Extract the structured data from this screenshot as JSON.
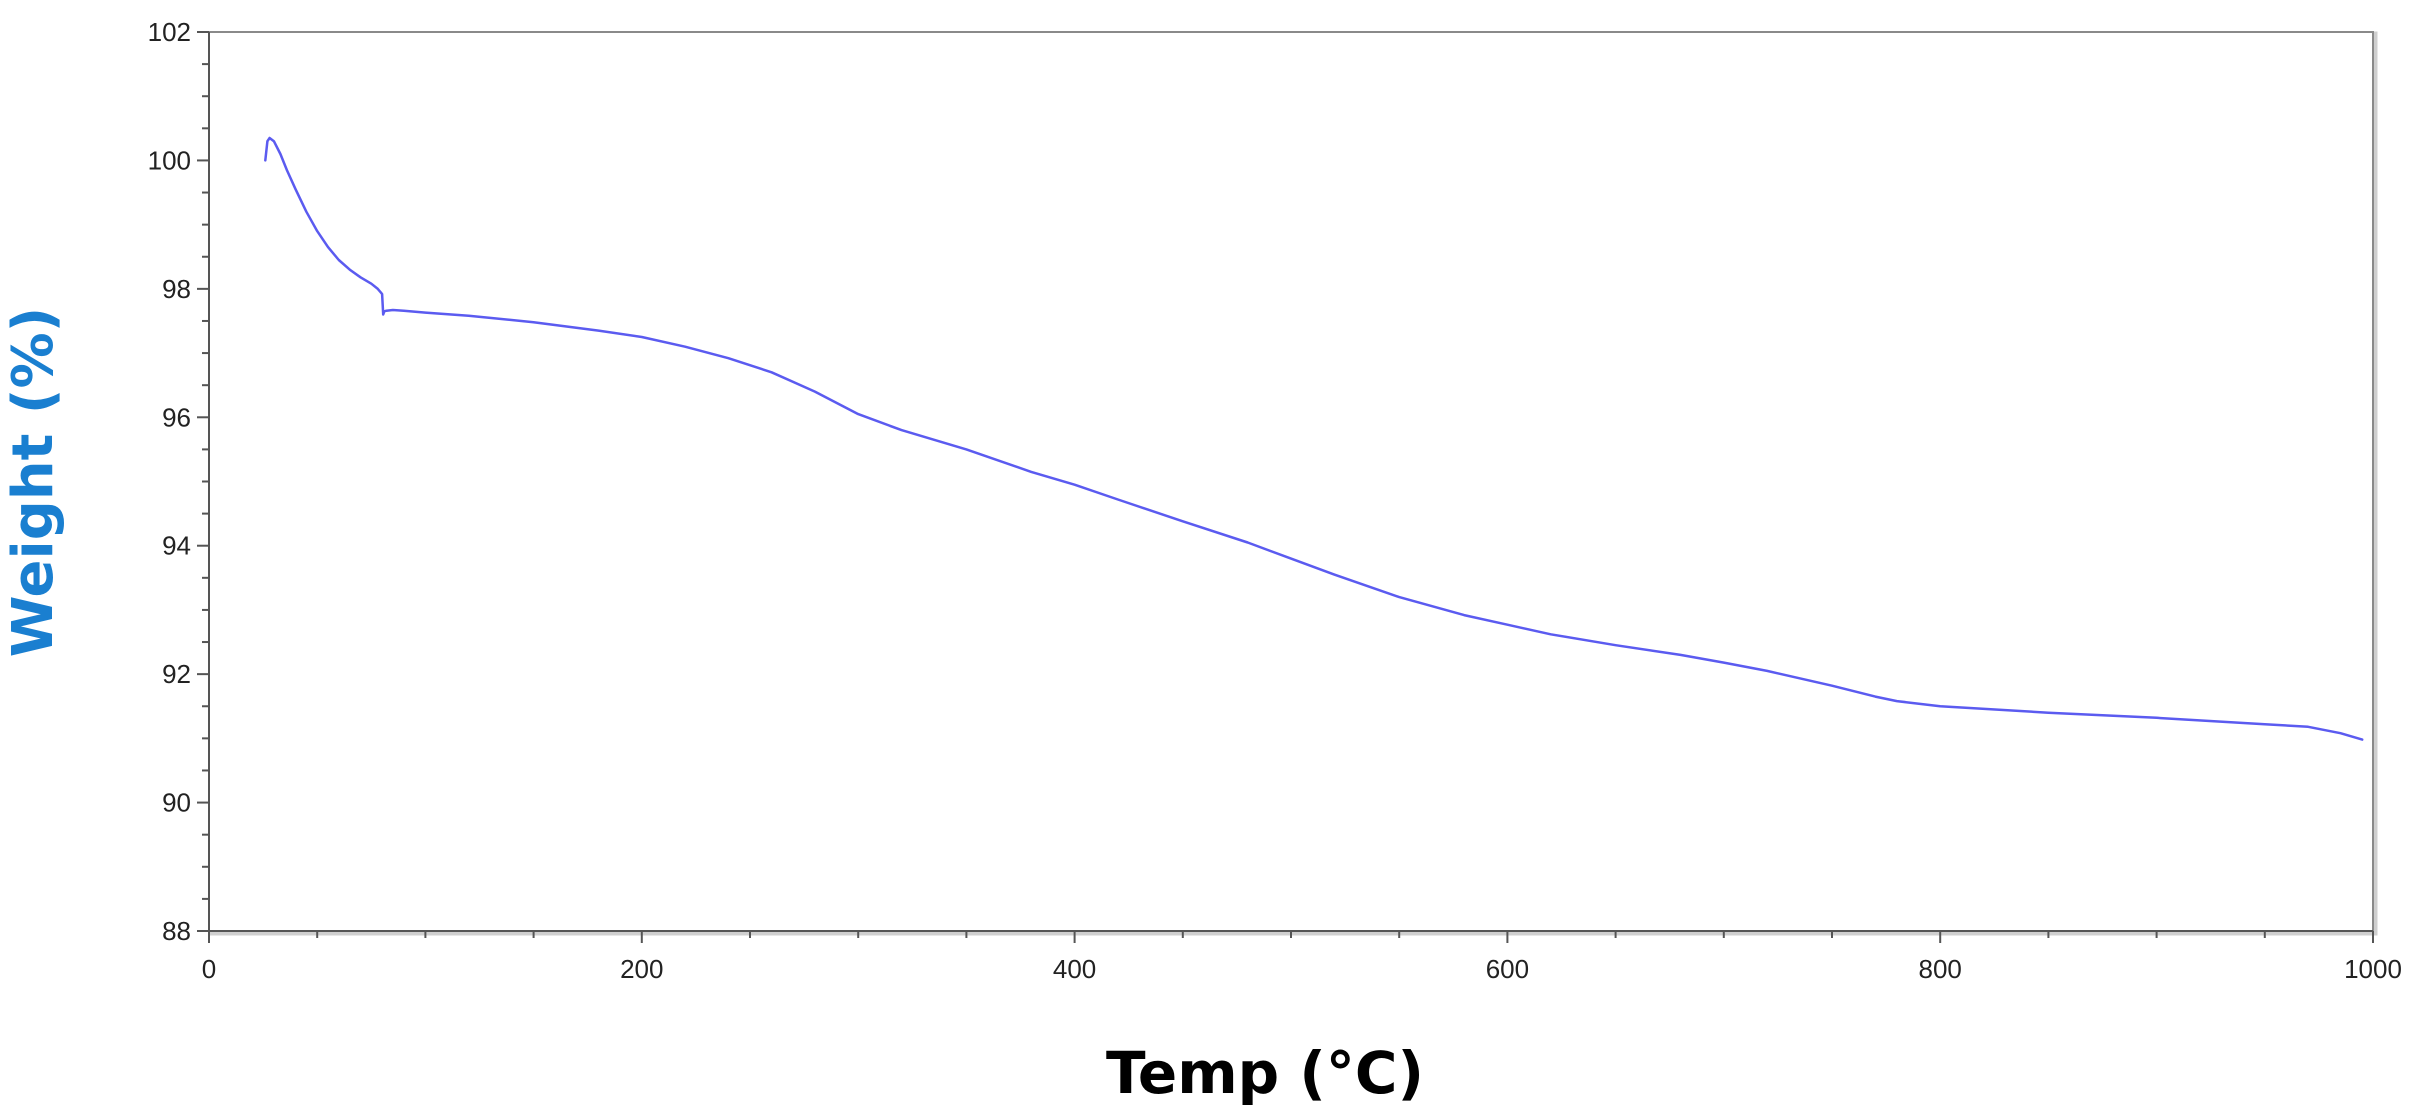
{
  "chart_data": {
    "type": "line",
    "title": "",
    "xlabel": "Temp (°C)",
    "ylabel": "Weight (%)",
    "xlim": [
      0,
      1000
    ],
    "ylim": [
      88,
      102
    ],
    "x_ticks": [
      0,
      200,
      400,
      600,
      800,
      1000
    ],
    "y_ticks": [
      88,
      90,
      92,
      94,
      96,
      98,
      100,
      102
    ],
    "x_minor_step": 50,
    "y_minor_step": 0.5,
    "grid": false,
    "legend": "none",
    "colors": {
      "line": "#5b5bf0",
      "ylabel": "#1a7fd0",
      "xlabel": "#000000",
      "axes": "#555555",
      "frame_shadow": "#cfcfcf"
    },
    "series": [
      {
        "x": [
          26,
          27,
          28,
          30,
          33,
          36,
          40,
          45,
          50,
          55,
          60,
          65,
          70,
          75,
          78,
          80,
          80.5,
          81,
          82,
          85,
          90,
          100,
          120,
          150,
          180,
          200,
          220,
          240,
          260,
          280,
          300,
          320,
          350,
          380,
          400,
          420,
          450,
          480,
          500,
          520,
          550,
          580,
          600,
          620,
          650,
          680,
          700,
          720,
          750,
          770,
          780,
          800,
          850,
          900,
          950,
          970,
          985,
          995
        ],
        "y": [
          100.0,
          100.3,
          100.35,
          100.3,
          100.1,
          99.85,
          99.55,
          99.2,
          98.9,
          98.65,
          98.45,
          98.3,
          98.18,
          98.08,
          98.0,
          97.92,
          97.6,
          97.65,
          97.66,
          97.67,
          97.66,
          97.63,
          97.58,
          97.48,
          97.35,
          97.25,
          97.1,
          96.92,
          96.7,
          96.4,
          96.05,
          95.8,
          95.5,
          95.15,
          94.95,
          94.72,
          94.38,
          94.05,
          93.8,
          93.55,
          93.2,
          92.92,
          92.77,
          92.62,
          92.45,
          92.3,
          92.18,
          92.05,
          91.82,
          91.65,
          91.58,
          91.5,
          91.4,
          91.32,
          91.22,
          91.18,
          91.08,
          90.98
        ]
      }
    ]
  }
}
